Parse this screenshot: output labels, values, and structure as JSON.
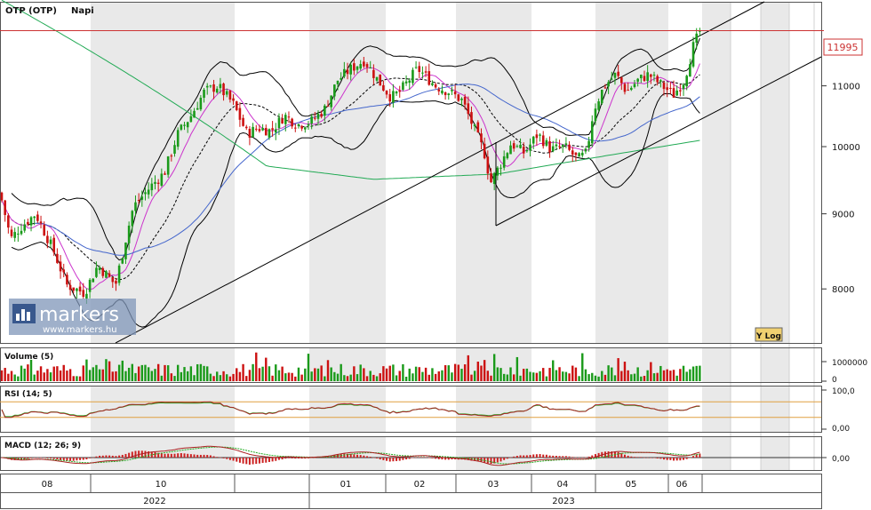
{
  "chart_data": {
    "type": "candlestick",
    "title": "OTP (OTP)",
    "period": "Napi",
    "last_price_label": "11995",
    "scale_mode": "Y Log",
    "price_axis": {
      "ticks": [
        8000,
        9000,
        10000,
        11000
      ],
      "range": [
        7350,
        12550
      ],
      "log": true
    },
    "months": [
      "08",
      "10",
      "01",
      "02",
      "03",
      "04",
      "05",
      "06"
    ],
    "years": [
      "2022",
      "2023"
    ],
    "price_waypoints": [
      [
        0,
        9300
      ],
      [
        12,
        8650
      ],
      [
        22,
        8800
      ],
      [
        40,
        9000
      ],
      [
        60,
        8500
      ],
      [
        75,
        8050
      ],
      [
        95,
        7950
      ],
      [
        110,
        8300
      ],
      [
        130,
        8050
      ],
      [
        150,
        9100
      ],
      [
        170,
        9400
      ],
      [
        185,
        9600
      ],
      [
        200,
        10200
      ],
      [
        215,
        10500
      ],
      [
        230,
        10900
      ],
      [
        245,
        11000
      ],
      [
        262,
        10700
      ],
      [
        278,
        10200
      ],
      [
        290,
        10300
      ],
      [
        305,
        10250
      ],
      [
        320,
        10500
      ],
      [
        335,
        10350
      ],
      [
        350,
        10400
      ],
      [
        365,
        10600
      ],
      [
        380,
        11100
      ],
      [
        395,
        11300
      ],
      [
        410,
        11450
      ],
      [
        425,
        11100
      ],
      [
        440,
        10800
      ],
      [
        450,
        10900
      ],
      [
        460,
        11100
      ],
      [
        470,
        11300
      ],
      [
        480,
        11150
      ],
      [
        490,
        11000
      ],
      [
        505,
        10900
      ],
      [
        520,
        10750
      ],
      [
        530,
        10400
      ],
      [
        545,
        9900
      ],
      [
        552,
        9450
      ],
      [
        562,
        9700
      ],
      [
        575,
        10050
      ],
      [
        590,
        9900
      ],
      [
        605,
        10200
      ],
      [
        620,
        9950
      ],
      [
        635,
        10000
      ],
      [
        650,
        9800
      ],
      [
        660,
        9900
      ],
      [
        668,
        10600
      ],
      [
        680,
        11000
      ],
      [
        693,
        11200
      ],
      [
        705,
        10900
      ],
      [
        718,
        11100
      ],
      [
        730,
        11200
      ],
      [
        745,
        11000
      ],
      [
        758,
        10850
      ],
      [
        770,
        11100
      ],
      [
        780,
        11700
      ],
      [
        788,
        11995
      ]
    ],
    "indicators": [
      {
        "name": "Volume (5)",
        "ticks": [
          "1000000",
          "0"
        ]
      },
      {
        "name": "RSI (14; 5)",
        "ticks": [
          "100,0",
          "0,00"
        ]
      },
      {
        "name": "MACD (12; 26; 9)",
        "ticks": [
          "0,00"
        ]
      }
    ],
    "colors": {
      "up": "#1a9a1a",
      "down": "#cc1111",
      "bollinger": "#000000",
      "sma_short": "#cc33cc",
      "sma_mid": "#4466cc",
      "sma_long": "#22aa55",
      "last_price_line": "#cc3333",
      "trend_line": "#000000"
    }
  },
  "watermark": {
    "brand": "markers",
    "url": "www.markers.hu"
  }
}
